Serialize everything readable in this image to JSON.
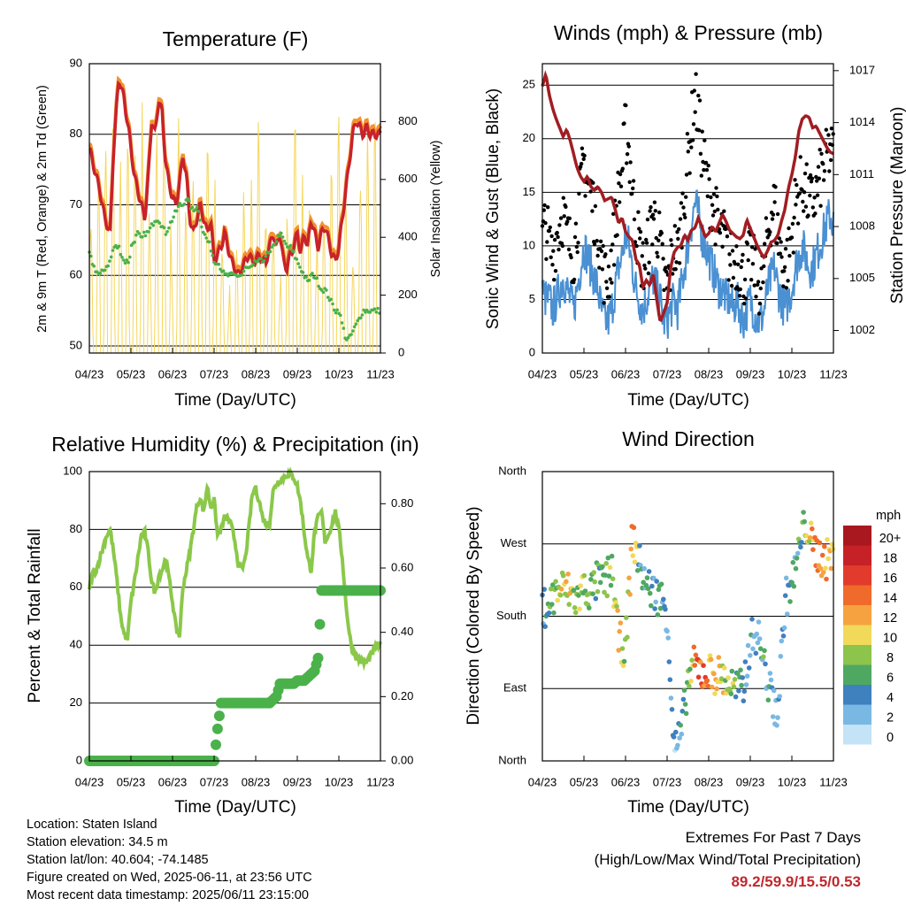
{
  "panels": {
    "temperature": {
      "title": "Temperature (F)",
      "ylabel_left": "2m & 9m T (Red, Orange) & 2m Td (Green)",
      "ylabel_right": "Solar Insolation (Yellow)",
      "xlabel": "Time (Day/UTC)",
      "xticks": [
        "04/23",
        "05/23",
        "06/23",
        "07/23",
        "08/23",
        "09/23",
        "10/23",
        "11/23"
      ],
      "yticks_left": [
        "50",
        "60",
        "70",
        "80",
        "90"
      ],
      "yticks_right": [
        "0",
        "200",
        "400",
        "600",
        "800"
      ]
    },
    "winds": {
      "title": "Winds (mph) & Pressure (mb)",
      "ylabel_left": "Sonic Wind & Gust (Blue, Black)",
      "ylabel_right": "Station Pressure (Maroon)",
      "xlabel": "Time (Day/UTC)",
      "xticks": [
        "04/23",
        "05/23",
        "06/23",
        "07/23",
        "08/23",
        "09/23",
        "10/23",
        "11/23"
      ],
      "yticks_left": [
        "0",
        "5",
        "10",
        "15",
        "20",
        "25"
      ],
      "yticks_right": [
        "1002",
        "1005",
        "1008",
        "1011",
        "1014",
        "1017"
      ]
    },
    "humidity": {
      "title": "Relative Humidity (%) & Precipitation (in)",
      "ylabel_left": "Percent & Total Rainfall",
      "xlabel": "Time (Day/UTC)",
      "xticks": [
        "04/23",
        "05/23",
        "06/23",
        "07/23",
        "08/23",
        "09/23",
        "10/23",
        "11/23"
      ],
      "yticks_left": [
        "0",
        "20",
        "40",
        "60",
        "80",
        "100"
      ],
      "yticks_right": [
        "0.00",
        "0.20",
        "0.40",
        "0.60",
        "0.80"
      ]
    },
    "direction": {
      "title": "Wind Direction",
      "ylabel_left": "Direction (Colored By Speed)",
      "xlabel": "Time (Day/UTC)",
      "xticks": [
        "04/23",
        "05/23",
        "06/23",
        "07/23",
        "08/23",
        "09/23",
        "10/23",
        "11/23"
      ],
      "yticks_left": [
        "North",
        "East",
        "South",
        "West",
        "North"
      ],
      "colorbar_title": "mph",
      "colorbar_labels": [
        "20+",
        "18",
        "16",
        "14",
        "12",
        "10",
        "8",
        "6",
        "4",
        "2",
        "0"
      ]
    }
  },
  "colors": {
    "temp_2m": "#c8222a",
    "temp_9m": "#f39230",
    "dewpoint": "#4bb14a",
    "solar": "#f5d65c",
    "wind": "#4a90d2",
    "gust": "#000000",
    "pressure": "#a11d22",
    "rh": "#8bc84a",
    "precip": "#4bb14a",
    "colorbar": [
      "#a8181e",
      "#c52127",
      "#e23a2c",
      "#f06a2b",
      "#f7a240",
      "#f1d95a",
      "#8cc44c",
      "#4fa862",
      "#3f80bf",
      "#7ab8e4",
      "#c4e3f6"
    ]
  },
  "chart_data": [
    {
      "type": "line",
      "title": "Temperature (F)",
      "xlabel": "Time (Day/UTC)",
      "ylabel": "2m & 9m T (Red, Orange) & 2m Td (Green)",
      "y2label": "Solar Insolation (Yellow)",
      "x_days": [
        0,
        3,
        6,
        9,
        12,
        14,
        17,
        20,
        23,
        24,
        26,
        28,
        30,
        32,
        34,
        36,
        38,
        40,
        42,
        44,
        46,
        48,
        50,
        52,
        54,
        56,
        58,
        60,
        62,
        64,
        66,
        68,
        70,
        72,
        74,
        76,
        78,
        80,
        82,
        84,
        86,
        88,
        90,
        92,
        94,
        96,
        98,
        100,
        102,
        104,
        106,
        108,
        110,
        112,
        114,
        116,
        118,
        120,
        122,
        124,
        126,
        128,
        130,
        132,
        134,
        136,
        138,
        140,
        142,
        144,
        146,
        148,
        150,
        152,
        154,
        156,
        158,
        160,
        162,
        164,
        166,
        168
      ],
      "ylim": [
        49,
        90
      ],
      "y2lim": [
        0,
        1000
      ],
      "series": [
        {
          "name": "2m T",
          "values": [
            78,
            75,
            72,
            68,
            66,
            78,
            88,
            85,
            80,
            78,
            74,
            72,
            70,
            68,
            74,
            82,
            80,
            85,
            83,
            76,
            73,
            71,
            70,
            73,
            77,
            74,
            68,
            66,
            68,
            70,
            68,
            66,
            68,
            62,
            63,
            64,
            66,
            64,
            62,
            61,
            60,
            61,
            62,
            63,
            62,
            62,
            63,
            62,
            62,
            64,
            66,
            64,
            66,
            62,
            61,
            63,
            64,
            66,
            63,
            66,
            64,
            68,
            66,
            64,
            66,
            67,
            65,
            63,
            62,
            64,
            68,
            72,
            76,
            80,
            82,
            81,
            80,
            81,
            80,
            80,
            80,
            80
          ]
        },
        {
          "name": "2m Td",
          "values": [
            63,
            61,
            60,
            61,
            62,
            64,
            64,
            62,
            62,
            64,
            65,
            66,
            65,
            66,
            66,
            67,
            68,
            68,
            67,
            66,
            67,
            68,
            69,
            70,
            70,
            71,
            70,
            69,
            70,
            68,
            66,
            65,
            64,
            62,
            62,
            61,
            60,
            60,
            60,
            60,
            60,
            60,
            61,
            61,
            61,
            62,
            62,
            62,
            63,
            63,
            64,
            65,
            66,
            65,
            64,
            64,
            63,
            62,
            61,
            60,
            59,
            60,
            60,
            59,
            58,
            58,
            57,
            56,
            55,
            55,
            53,
            51,
            51,
            52,
            53,
            54,
            55,
            55,
            55,
            55,
            55,
            55
          ]
        }
      ]
    },
    {
      "type": "line",
      "title": "Winds (mph) & Pressure (mb)",
      "xlabel": "Time (Day/UTC)",
      "ylabel": "Sonic Wind & Gust (Blue, Black)",
      "y2label": "Station Pressure (Maroon)",
      "ylim": [
        0,
        27
      ],
      "y2lim": [
        1000.7,
        1017.4
      ],
      "x_days": [
        0,
        2,
        4,
        6,
        8,
        10,
        12,
        14,
        16,
        18,
        20,
        22,
        24,
        26,
        28,
        30,
        32,
        34,
        36,
        38,
        40,
        42,
        44,
        46,
        48,
        50,
        52,
        54,
        56,
        58,
        60,
        62,
        64,
        66,
        68,
        70,
        72,
        74,
        76,
        78,
        80,
        82,
        84,
        86,
        88,
        90,
        92,
        94,
        96,
        98,
        100,
        102,
        104,
        106,
        108,
        110,
        112,
        114,
        116,
        118,
        120,
        122,
        124,
        126,
        128,
        130,
        132,
        134,
        136,
        138,
        140,
        142,
        144,
        146,
        148,
        150,
        152,
        154,
        156,
        158,
        160,
        162,
        164,
        166,
        168
      ],
      "series": [
        {
          "name": "Station Pressure",
          "values": [
            1016.1,
            1016.8,
            1015.6,
            1014.8,
            1014.2,
            1013.7,
            1013.2,
            1013.6,
            1013.0,
            1012.2,
            1011.4,
            1010.9,
            1010.6,
            1010.9,
            1010.3,
            1010.1,
            1010.3,
            1010.0,
            1009.5,
            1009.6,
            1009.7,
            1009.0,
            1008.2,
            1008.5,
            1007.7,
            1007.4,
            1007.2,
            1006.1,
            1005.8,
            1004.5,
            1004.9,
            1004.6,
            1005.3,
            1003.8,
            1002.5,
            1003.0,
            1003.6,
            1005.6,
            1006.5,
            1006.8,
            1006.9,
            1007.5,
            1007.2,
            1007.8,
            1007.9,
            1008.5,
            1008.0,
            1007.4,
            1007.6,
            1008.0,
            1007.7,
            1008.2,
            1008.7,
            1008.3,
            1007.8,
            1007.6,
            1007.4,
            1007.3,
            1007.5,
            1008.4,
            1007.9,
            1007.4,
            1006.9,
            1006.5,
            1006.2,
            1006.6,
            1007.1,
            1007.2,
            1007.5,
            1008.3,
            1009.0,
            1010.2,
            1011.0,
            1012.0,
            1013.5,
            1014.2,
            1014.4,
            1014.3,
            1013.7,
            1013.8,
            1013.4,
            1013.0,
            1012.6,
            1012.3,
            1012.2
          ]
        },
        {
          "name": "Sonic Wind",
          "values": [
            6,
            5,
            5,
            4,
            5,
            6,
            7,
            6,
            5,
            4,
            6,
            8,
            10,
            9,
            8,
            7,
            6,
            4,
            3,
            3,
            4,
            6,
            8,
            9,
            11,
            10,
            8,
            6,
            5,
            4,
            5,
            6,
            7,
            6,
            5,
            3,
            3,
            4,
            5,
            4,
            6,
            8,
            10,
            12,
            14,
            13,
            11,
            10,
            9,
            8,
            7,
            6,
            6,
            5,
            5,
            4,
            5,
            4,
            3,
            4,
            5,
            4,
            3,
            3,
            4,
            6,
            7,
            8,
            6,
            5,
            4,
            5,
            6,
            8,
            9,
            10,
            9,
            8,
            8,
            9,
            10,
            11,
            12,
            13,
            12
          ]
        },
        {
          "name": "Gust",
          "values": [
            11,
            12,
            10,
            9,
            11,
            12,
            13,
            11,
            10,
            9,
            12,
            15,
            18,
            16,
            15,
            13,
            12,
            9,
            7,
            7,
            9,
            12,
            15,
            17,
            21,
            19,
            15,
            12,
            10,
            8,
            9,
            11,
            13,
            12,
            10,
            7,
            6,
            8,
            10,
            9,
            12,
            15,
            18,
            21,
            24,
            22,
            19,
            17,
            15,
            14,
            13,
            11,
            11,
            10,
            9,
            8,
            9,
            8,
            7,
            8,
            9,
            8,
            7,
            6,
            8,
            11,
            13,
            14,
            11,
            9,
            8,
            9,
            11,
            14,
            15,
            16,
            15,
            14,
            14,
            15,
            16,
            17,
            18,
            19,
            18
          ]
        }
      ]
    },
    {
      "type": "line",
      "title": "Relative Humidity (%) & Precipitation (in)",
      "xlabel": "Time (Day/UTC)",
      "ylabel": "Percent & Total Rainfall",
      "ylim": [
        0,
        100
      ],
      "y2lim": [
        0,
        0.9
      ],
      "x_days": [
        0,
        2,
        4,
        6,
        8,
        10,
        12,
        14,
        16,
        18,
        20,
        22,
        24,
        26,
        28,
        30,
        32,
        34,
        36,
        38,
        40,
        42,
        44,
        46,
        48,
        50,
        52,
        54,
        56,
        58,
        60,
        62,
        64,
        66,
        68,
        70,
        72,
        74,
        76,
        78,
        80,
        82,
        84,
        86,
        88,
        90,
        92,
        94,
        96,
        98,
        100,
        102,
        104,
        106,
        108,
        110,
        112,
        114,
        116,
        118,
        120,
        122,
        124,
        126,
        128,
        130,
        132,
        134,
        136,
        138,
        140,
        142,
        144,
        146,
        148,
        150,
        152,
        154,
        156,
        158,
        160,
        162,
        164,
        166,
        168
      ],
      "series": [
        {
          "name": "Relative Humidity",
          "values": [
            60,
            65,
            66,
            70,
            74,
            78,
            80,
            72,
            62,
            50,
            44,
            42,
            55,
            62,
            70,
            78,
            79,
            72,
            62,
            58,
            64,
            66,
            70,
            63,
            55,
            46,
            43,
            60,
            66,
            72,
            80,
            88,
            91,
            86,
            95,
            88,
            90,
            78,
            80,
            84,
            84,
            81,
            76,
            68,
            66,
            70,
            80,
            92,
            94,
            90,
            84,
            82,
            82,
            93,
            96,
            97,
            98,
            99,
            99,
            98,
            95,
            89,
            79,
            70,
            66,
            79,
            84,
            86,
            76,
            78,
            82,
            86,
            80,
            70,
            55,
            44,
            38,
            36,
            35,
            34,
            34,
            36,
            38,
            40,
            40
          ]
        },
        {
          "name": "Total Rainfall",
          "values": [
            0.0,
            0.0,
            0.0,
            0.0,
            0.0,
            0.0,
            0.0,
            0.0,
            0.0,
            0.0,
            0.0,
            0.0,
            0.0,
            0.0,
            0.0,
            0.0,
            0.0,
            0.0,
            0.0,
            0.0,
            0.0,
            0.0,
            0.0,
            0.0,
            0.0,
            0.0,
            0.0,
            0.0,
            0.0,
            0.0,
            0.0,
            0.0,
            0.0,
            0.0,
            0.0,
            0.0,
            0.0,
            0.1,
            0.18,
            0.18,
            0.18,
            0.18,
            0.18,
            0.18,
            0.18,
            0.18,
            0.18,
            0.18,
            0.18,
            0.18,
            0.18,
            0.18,
            0.18,
            0.19,
            0.2,
            0.24,
            0.24,
            0.24,
            0.24,
            0.24,
            0.25,
            0.25,
            0.25,
            0.26,
            0.27,
            0.28,
            0.32,
            0.53,
            0.53,
            0.53,
            0.53,
            0.53,
            0.53,
            0.53,
            0.53,
            0.53,
            0.53,
            0.53,
            0.53,
            0.53,
            0.53,
            0.53,
            0.53,
            0.53,
            0.53
          ]
        }
      ]
    },
    {
      "type": "scatter",
      "title": "Wind Direction",
      "xlabel": "Time (Day/UTC)",
      "ylabel": "Direction (Colored By Speed)",
      "ylim_degrees": [
        0,
        360
      ],
      "color_by": "wind speed (mph)",
      "x_days": [
        0,
        4,
        8,
        12,
        16,
        20,
        24,
        28,
        32,
        36,
        40,
        44,
        48,
        52,
        56,
        60,
        64,
        68,
        72,
        76,
        80,
        84,
        88,
        92,
        96,
        100,
        104,
        108,
        112,
        116,
        120,
        124,
        128,
        132,
        136,
        140,
        144,
        148,
        152,
        156,
        160,
        164,
        168
      ],
      "direction_deg": [
        190,
        195,
        210,
        215,
        210,
        200,
        215,
        210,
        225,
        220,
        240,
        150,
        140,
        280,
        245,
        220,
        210,
        205,
        185,
        15,
        30,
        100,
        120,
        110,
        110,
        108,
        105,
        95,
        90,
        88,
        150,
        160,
        120,
        80,
        60,
        200,
        220,
        260,
        300,
        265,
        255,
        250,
        260
      ],
      "speed_mph": [
        4,
        6,
        8,
        9,
        10,
        7,
        8,
        6,
        5,
        7,
        8,
        11,
        6,
        13,
        5,
        4,
        4,
        5,
        3,
        3,
        4,
        6,
        13,
        15,
        12,
        11,
        10,
        8,
        6,
        5,
        4,
        3,
        5,
        4,
        3,
        3,
        4,
        5,
        8,
        12,
        14,
        12,
        10
      ]
    }
  ],
  "footer": {
    "location": "Location: Staten Island",
    "elevation": "Station elevation: 34.5 m",
    "latlon": "Station lat/lon: 40.604; -74.1485",
    "created": "Figure created on Wed, 2025-06-11, at 23:56 UTC",
    "recent": "Most recent data timestamp: 2025/06/11 23:15:00",
    "extremes_title": "Extremes For Past 7 Days",
    "extremes_sub": "(High/Low/Max Wind/Total Precipitation)",
    "extremes_values": "89.2/59.9/15.5/0.53"
  }
}
